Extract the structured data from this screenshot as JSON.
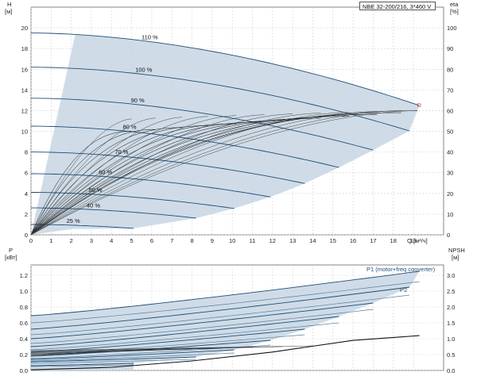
{
  "chart_data": [
    {
      "type": "line",
      "panel": "head",
      "title": "NBE 32-200/216, 3*460 V",
      "xlabel": "Q [м³/ч]",
      "ylabel_left": "H",
      "ylabel_left_unit": "[м]",
      "ylabel_right": "eta",
      "ylabel_right_unit": "[%]",
      "x_ticks": [
        "0",
        "1",
        "2",
        "3",
        "4",
        "5",
        "6",
        "7",
        "8",
        "9",
        "10",
        "11",
        "12",
        "13",
        "14",
        "15",
        "16",
        "17",
        "18",
        "19"
      ],
      "y_ticks_left": [
        "0",
        "2",
        "4",
        "6",
        "8",
        "10",
        "12",
        "14",
        "16",
        "18",
        "20"
      ],
      "y_ticks_right": [
        "0",
        "10",
        "20",
        "30",
        "40",
        "50",
        "60",
        "70",
        "80",
        "90",
        "100"
      ],
      "xlim": [
        0,
        20.5
      ],
      "ylim_left": [
        0,
        22
      ],
      "ylim_right": [
        0,
        110
      ],
      "grid": true,
      "operating_range_color": "#c7d6e3",
      "curve_color": "#1f4e79",
      "eta_color": "#111111",
      "marker_label": "D",
      "marker_color": "#d04020",
      "marker": {
        "x": 19.1,
        "y": 12.5
      },
      "speed_curves": [
        {
          "name": "110 %",
          "shutoff": 19.5,
          "qmax": 19.3
        },
        {
          "name": "100 %",
          "shutoff": 16.2,
          "qmax": 18.8
        },
        {
          "name": "90 %",
          "shutoff": 13.2,
          "qmax": 17.0
        },
        {
          "name": "80 %",
          "shutoff": 10.5,
          "qmax": 15.3
        },
        {
          "name": "70 %",
          "shutoff": 8.0,
          "qmax": 13.6
        },
        {
          "name": "60 %",
          "shutoff": 5.9,
          "qmax": 11.9
        },
        {
          "name": "50 %",
          "shutoff": 4.1,
          "qmax": 10.1
        },
        {
          "name": "40 %",
          "shutoff": 2.6,
          "qmax": 8.2
        },
        {
          "name": "25 %",
          "shutoff": 1.0,
          "qmax": 5.1
        }
      ],
      "visible_curve_labels": [
        "110 %",
        "100 %",
        "90 %",
        "80 %",
        "70 %",
        "60 %",
        "50 %",
        "40 %",
        "25 %"
      ]
    },
    {
      "type": "line",
      "panel": "power",
      "ylabel_left": "P",
      "ylabel_left_unit": "[кВт]",
      "ylabel_right": "NPSH",
      "ylabel_right_unit": "[м]",
      "y_ticks_left": [
        "0.0",
        "0.2",
        "0.4",
        "0.6",
        "0.8",
        "1.0",
        "1.2"
      ],
      "y_ticks_right": [
        "0.0",
        "0.5",
        "1.0",
        "1.5",
        "2.0",
        "2.5",
        "3.0"
      ],
      "ylim_left": [
        0,
        1.33
      ],
      "ylim_right": [
        0,
        3.33
      ],
      "grid": true,
      "series_labels": [
        "P1 (motor+freq converter)",
        "P2"
      ],
      "p1_curves": [
        {
          "p0": 0.69,
          "p_end": 1.25,
          "qmax": 19.3
        },
        {
          "p0": 0.52,
          "p_end": 1.05,
          "qmax": 18.8
        },
        {
          "p0": 0.4,
          "p_end": 0.85,
          "qmax": 17.0
        },
        {
          "p0": 0.3,
          "p_end": 0.68,
          "qmax": 15.3
        },
        {
          "p0": 0.23,
          "p_end": 0.52,
          "qmax": 13.6
        },
        {
          "p0": 0.18,
          "p_end": 0.38,
          "qmax": 11.9
        },
        {
          "p0": 0.14,
          "p_end": 0.26,
          "qmax": 10.1
        },
        {
          "p0": 0.11,
          "p_end": 0.17,
          "qmax": 8.2
        },
        {
          "p0": 0.06,
          "p_end": 0.09,
          "qmax": 5.1
        }
      ],
      "p2_curves": [
        {
          "p0": 0.6,
          "p_end": 1.12,
          "qmax": 19.3
        },
        {
          "p0": 0.45,
          "p_end": 0.95,
          "qmax": 18.8
        },
        {
          "p0": 0.34,
          "p_end": 0.77,
          "qmax": 17.0
        },
        {
          "p0": 0.26,
          "p_end": 0.6,
          "qmax": 15.3
        },
        {
          "p0": 0.2,
          "p_end": 0.45,
          "qmax": 13.6
        },
        {
          "p0": 0.15,
          "p_end": 0.32,
          "qmax": 11.9
        },
        {
          "p0": 0.12,
          "p_end": 0.22,
          "qmax": 10.1
        },
        {
          "p0": 0.09,
          "p_end": 0.14,
          "qmax": 8.2
        },
        {
          "p0": 0.05,
          "p_end": 0.07,
          "qmax": 5.1
        }
      ],
      "npsh": {
        "x": [
          0,
          4,
          8,
          12,
          16,
          19.3
        ],
        "y": [
          0.02,
          0.1,
          0.3,
          0.58,
          0.95,
          1.1
        ]
      }
    }
  ]
}
